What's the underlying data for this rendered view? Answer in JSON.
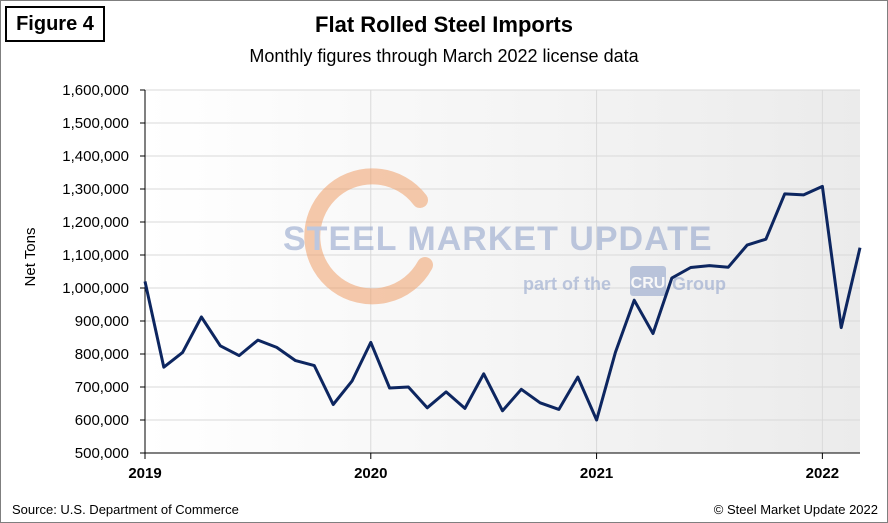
{
  "figure_label": "Figure 4",
  "source_note": "Source: U.S. Department of Commerce",
  "copyright_note": "© Steel Market Update 2022",
  "watermark": {
    "brand": "STEEL MARKET UPDATE",
    "sub_prefix": "part of the",
    "badge": "CRU",
    "sub_suffix": "Group",
    "colors": {
      "text": "#8c9fc9",
      "arc": "#f0a06a"
    }
  },
  "colors": {
    "line": "#0d2660",
    "grid": "#d9d9d9",
    "plot_bg": "#ffffff",
    "axis": "#000000"
  },
  "chart_data": {
    "type": "line",
    "title": "Flat Rolled Steel Imports",
    "subtitle": "Monthly figures through March 2022 license data",
    "ylabel": "Net Tons",
    "xlabel": "",
    "ylim": [
      500000,
      1600000
    ],
    "yticks": [
      500000,
      600000,
      700000,
      800000,
      900000,
      1000000,
      1100000,
      1200000,
      1300000,
      1400000,
      1500000,
      1600000
    ],
    "ytick_labels": [
      "500,000",
      "600,000",
      "700,000",
      "800,000",
      "900,000",
      "1,000,000",
      "1,100,000",
      "1,200,000",
      "1,300,000",
      "1,400,000",
      "1,500,000",
      "1,600,000"
    ],
    "xlim": [
      "2019-01",
      "2022-03"
    ],
    "xticks": [
      "2019-01",
      "2020-01",
      "2021-01",
      "2022-01"
    ],
    "xtick_labels": [
      "2019",
      "2020",
      "2021",
      "2022"
    ],
    "grid": "horizontal",
    "x": [
      "2019-01",
      "2019-02",
      "2019-03",
      "2019-04",
      "2019-05",
      "2019-06",
      "2019-07",
      "2019-08",
      "2019-09",
      "2019-10",
      "2019-11",
      "2019-12",
      "2020-01",
      "2020-02",
      "2020-03",
      "2020-04",
      "2020-05",
      "2020-06",
      "2020-07",
      "2020-08",
      "2020-09",
      "2020-10",
      "2020-11",
      "2020-12",
      "2021-01",
      "2021-02",
      "2021-03",
      "2021-04",
      "2021-05",
      "2021-06",
      "2021-07",
      "2021-08",
      "2021-09",
      "2021-10",
      "2021-11",
      "2021-12",
      "2022-01",
      "2022-02",
      "2022-03"
    ],
    "series": [
      {
        "values": [
          1020000,
          760000,
          805000,
          912000,
          825000,
          795000,
          842000,
          820000,
          780000,
          765000,
          647000,
          718000,
          835000,
          697000,
          700000,
          637000,
          685000,
          635000,
          740000,
          628000,
          693000,
          652000,
          632000,
          730000,
          600000,
          805000,
          963000,
          862000,
          1030000,
          1062000,
          1068000,
          1063000,
          1130000,
          1148000,
          1285000,
          1282000,
          1308000,
          880000,
          1122000
        ]
      }
    ]
  }
}
